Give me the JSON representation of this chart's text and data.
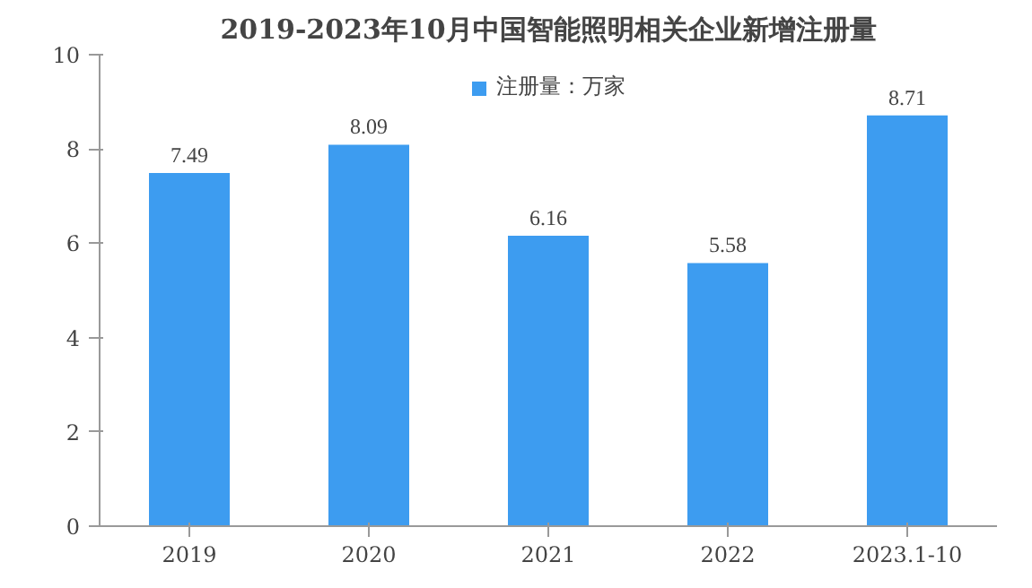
{
  "chart_data": {
    "type": "bar",
    "title": "2019-2023年10月中国智能照明相关企业新增注册量",
    "categories": [
      "2019",
      "2020",
      "2021",
      "2022",
      "2023.1-10"
    ],
    "series": [
      {
        "name": "注册量：万家",
        "color": "#3d9cf0",
        "values": [
          7.49,
          8.09,
          6.16,
          5.58,
          8.71
        ]
      }
    ],
    "ylim": [
      0,
      10
    ],
    "yticks": [
      0,
      2,
      4,
      6,
      8,
      10
    ],
    "grid": false,
    "legend": "top",
    "data_labels": true
  }
}
